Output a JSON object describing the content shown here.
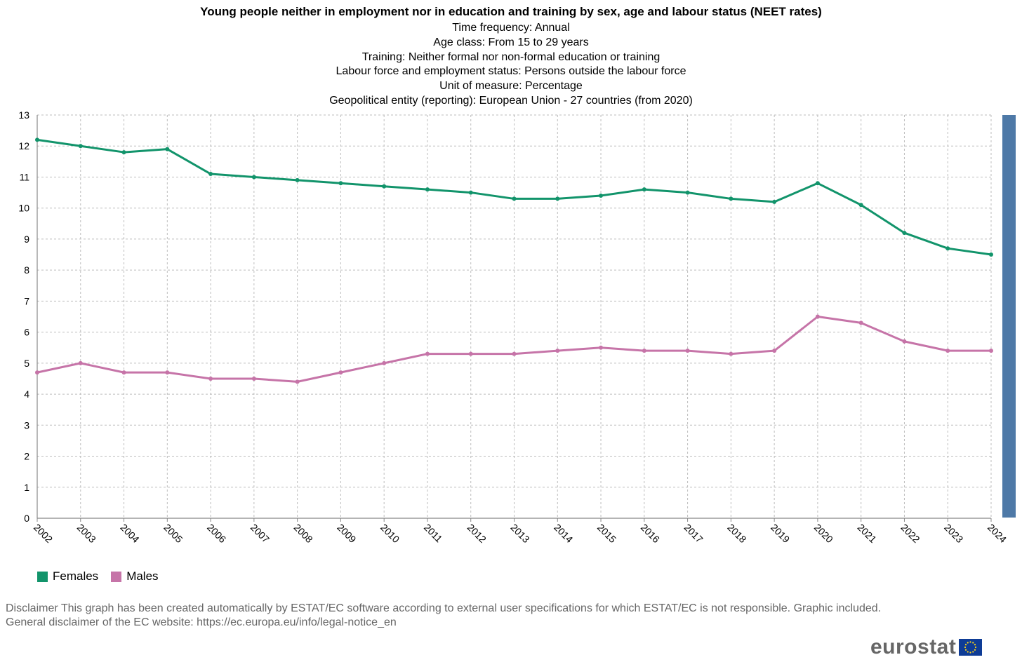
{
  "chart_data": {
    "type": "line",
    "title": "Young people neither in employment nor in education and training by sex, age and labour status (NEET rates)",
    "subtitle_lines": [
      "Time frequency:  Annual",
      "Age class:  From 15 to 29 years",
      "Training:  Neither formal nor non-formal education or training",
      "Labour force and employment status:  Persons outside the labour force",
      "Unit of measure:  Percentage",
      "Geopolitical entity (reporting):  European Union - 27 countries (from 2020)"
    ],
    "x": [
      "2002",
      "2003",
      "2004",
      "2005",
      "2006",
      "2007",
      "2008",
      "2009",
      "2010",
      "2011",
      "2012",
      "2013",
      "2014",
      "2015",
      "2016",
      "2017",
      "2018",
      "2019",
      "2020",
      "2021",
      "2022",
      "2023",
      "2024"
    ],
    "ylim": [
      0,
      13
    ],
    "yticks": [
      "0",
      "1",
      "2",
      "3",
      "4",
      "5",
      "6",
      "7",
      "8",
      "9",
      "10",
      "11",
      "12",
      "13"
    ],
    "grid": true,
    "series": [
      {
        "name": "Females",
        "color": "#12946b",
        "values": [
          12.2,
          12.0,
          11.8,
          11.9,
          11.1,
          11.0,
          10.9,
          10.8,
          10.7,
          10.6,
          10.5,
          10.3,
          10.3,
          10.4,
          10.6,
          10.5,
          10.3,
          10.2,
          10.8,
          10.1,
          9.2,
          8.7,
          8.5
        ]
      },
      {
        "name": "Males",
        "color": "#c674a8",
        "values": [
          4.7,
          5.0,
          4.7,
          4.7,
          4.5,
          4.5,
          4.4,
          4.7,
          5.0,
          5.3,
          5.3,
          5.3,
          5.4,
          5.5,
          5.4,
          5.4,
          5.3,
          5.4,
          6.5,
          6.3,
          5.7,
          5.4,
          5.4
        ]
      }
    ],
    "legend_position": "bottom-left"
  },
  "legend": {
    "females": "Females",
    "males": "Males"
  },
  "disclaimer": {
    "line1": "Disclaimer This graph has been created automatically by ESTAT/EC software according to external user specifications for which ESTAT/EC is not responsible. Graphic included.",
    "line2": "General disclaimer of the EC website: https://ec.europa.eu/info/legal-notice_en"
  },
  "logo": {
    "text": "eurostat"
  },
  "colors": {
    "females": "#12946b",
    "males": "#c674a8",
    "scrollbar": "#4e79a7"
  }
}
